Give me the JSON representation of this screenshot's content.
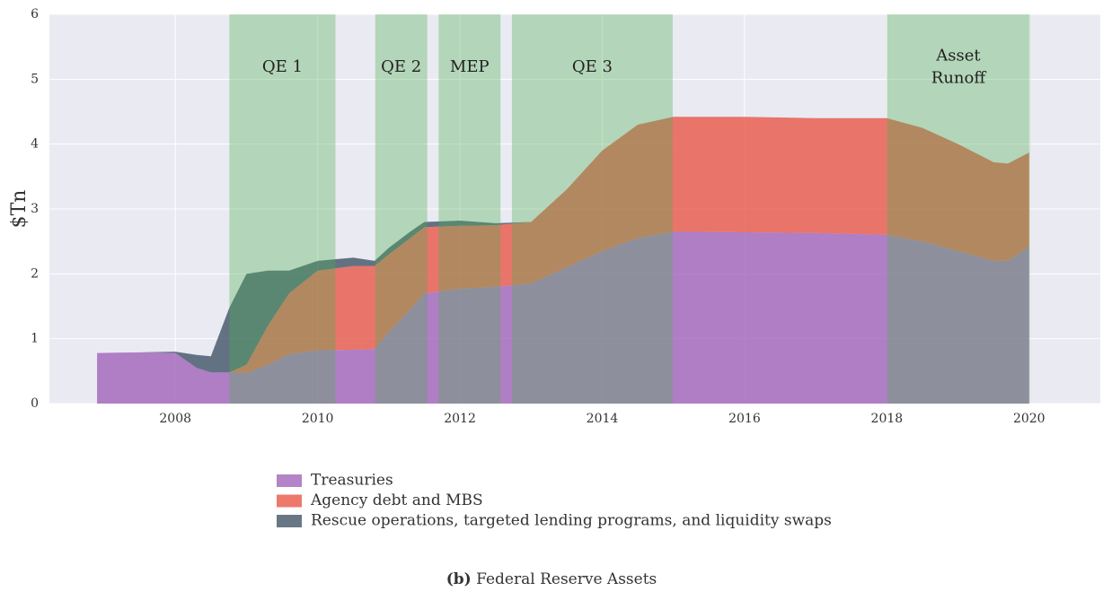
{
  "chart_data": {
    "type": "stacked_area",
    "y_label": "$Tn",
    "x": [
      2006.9,
      2007.5,
      2008.0,
      2008.3,
      2008.5,
      2008.76,
      2009.0,
      2009.3,
      2009.6,
      2010.0,
      2010.5,
      2010.8,
      2011.0,
      2011.3,
      2011.5,
      2012.0,
      2012.5,
      2013.0,
      2013.5,
      2014.0,
      2014.5,
      2015.0,
      2016.0,
      2017.0,
      2018.0,
      2018.5,
      2019.0,
      2019.5,
      2019.7,
      2020.0
    ],
    "series": [
      {
        "name": "Treasuries",
        "color": "#9b59b6",
        "values": [
          0.78,
          0.79,
          0.78,
          0.55,
          0.48,
          0.48,
          0.47,
          0.6,
          0.76,
          0.82,
          0.83,
          0.84,
          1.1,
          1.45,
          1.7,
          1.77,
          1.8,
          1.85,
          2.1,
          2.35,
          2.55,
          2.65,
          2.64,
          2.63,
          2.6,
          2.5,
          2.35,
          2.2,
          2.2,
          2.42
        ]
      },
      {
        "name": "Agency debt and MBS",
        "color": "#e74c3c",
        "values": [
          0,
          0,
          0,
          0,
          0,
          0,
          0.13,
          0.6,
          0.94,
          1.23,
          1.29,
          1.28,
          1.2,
          1.1,
          1.02,
          0.97,
          0.95,
          0.95,
          1.2,
          1.55,
          1.75,
          1.77,
          1.78,
          1.77,
          1.8,
          1.75,
          1.65,
          1.52,
          1.5,
          1.45
        ]
      },
      {
        "name": "Rescue operations, targeted lending programs, and liquidity swaps",
        "color": "#34495e",
        "values": [
          0,
          0,
          0.02,
          0.2,
          0.25,
          1.0,
          1.4,
          0.85,
          0.35,
          0.15,
          0.13,
          0.08,
          0.1,
          0.1,
          0.08,
          0.08,
          0.03,
          0,
          0,
          0,
          0,
          0,
          0,
          0,
          0,
          0,
          0,
          0,
          0,
          0
        ]
      }
    ],
    "shaded_regions": [
      {
        "label": [
          "QE 1"
        ],
        "start": 2008.76,
        "end": 2010.25
      },
      {
        "label": [
          "QE 2"
        ],
        "start": 2010.81,
        "end": 2011.54
      },
      {
        "label": [
          "MEP"
        ],
        "start": 2011.7,
        "end": 2012.57
      },
      {
        "label": [
          "QE 3"
        ],
        "start": 2012.73,
        "end": 2014.99
      },
      {
        "label": [
          "Asset",
          "Runoff"
        ],
        "start": 2018.0,
        "end": 2020.01
      }
    ],
    "shade_color": "#4caf50",
    "xlim": [
      2006.23,
      2021.0
    ],
    "xticks": [
      2008,
      2010,
      2012,
      2014,
      2016,
      2018,
      2020
    ],
    "ylim": [
      0,
      6
    ],
    "yticks": [
      0,
      1,
      2,
      3,
      4,
      5,
      6
    ],
    "grid": true,
    "caption": {
      "label": "(b)",
      "text": "Federal Reserve Assets"
    }
  }
}
